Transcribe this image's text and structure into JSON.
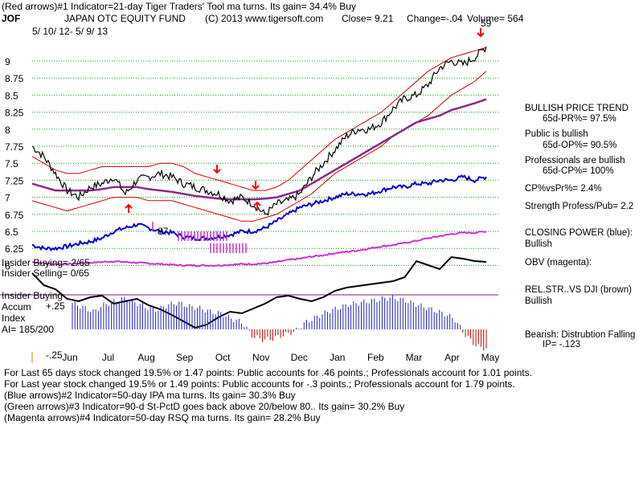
{
  "header": {
    "line1": "(Red arrows)#1 Indicator=21-day Tiger Traders' Tool ma turns. Its gain= 34.4% Buy",
    "symbol": "JOF",
    "fund_name": "JAPAN OTC EQUITY FUND",
    "copyright": "(C) 2013 www.tigersoft.com",
    "close": "Close=  9.21",
    "change": "Change=-.04",
    "volume": "Volume= 564",
    "date_range": "5/ 10/ 12- 5/ 9/ 13",
    "current_label": "59"
  },
  "left_labels": {
    "insider_buying_ratio": "Insider Buying= 2/65",
    "insider_selling_ratio": "Insider Selling= 0/65",
    "insider_buying": "Insider Buying",
    "accum": "Accum",
    "index": "Index",
    "ai": "AI= 185/200",
    "plus25": "+.25",
    "minus25": "-.25",
    "annot_87": "87"
  },
  "right_panel": {
    "bullish_price_trend": "BULLISH PRICE TREND",
    "pr_pct": "65d-PR%= 97.5%",
    "public_bullish": "Public is bullish",
    "op_pct": "65d-OP%= 90.5%",
    "professionals_bullish": "Professionals are bullish",
    "cp_pct": "65d-CP%= 100%",
    "cp_vs_pr": "CP%vsPr%=  2.4%",
    "strength": "Strength Profess/Pub= 2.2",
    "closing_power": "CLOSING POWER (blue):",
    "closing_power_val": "Bullish",
    "obv": "OBV (magenta):",
    "relstr": "REL.STR..VS DJI (brown)",
    "relstr_val": "Bullish",
    "bearish": "Bearish: Distrubtion Falling",
    "ip": "IP= -.123"
  },
  "footer": {
    "line1": "For Last 65 days stock changed  19.5% or  1.47 points:  Public accounts for  .46 points.;  Professionals account for  1.01 points.",
    "line2": "For Last year stock changed  19.5% or  1.49 points:  Public accounts for -.3 points.;  Professionals account for  1.79 points.",
    "line3": "(Blue arrows)#2 Indicator=50-day IPA ma turns. Its gain= 30.3% Buy",
    "line4": "(Green arrows)#3 Indicator=90-d St-PctD goes back above 20/below 80.. Its gain= 30.2% Buy",
    "line5": "(Magenta arrows)#4 Indicator=50-day RSQ ma turns. Its gain= 28.2% Buy"
  },
  "chart_data": {
    "type": "line",
    "title": "JAPAN OTC EQUITY FUND (JOF) 5/10/12 - 5/9/13",
    "y_ticks": [
      "9",
      "8.75",
      "8.5",
      "8.25",
      "8",
      "7.75",
      "7.5",
      "7.25",
      "7",
      "6.75",
      "6.5",
      "6.25",
      "6"
    ],
    "ylim": [
      6,
      9.25
    ],
    "x_ticks": [
      "Jun",
      "Jul",
      "Aug",
      "Sep",
      "Oct",
      "Nov",
      "Dec",
      "Jan",
      "Feb",
      "Mar",
      "Apr",
      "May"
    ],
    "series": [
      {
        "name": "Price close",
        "values": [
          7.75,
          7.6,
          7.35,
          7.1,
          7.0,
          7.15,
          7.2,
          7.3,
          7.05,
          7.25,
          7.3,
          7.35,
          7.3,
          7.2,
          7.15,
          7.1,
          7.05,
          6.95,
          7.0,
          6.9,
          6.75,
          6.9,
          6.95,
          7.05,
          7.3,
          7.5,
          7.7,
          7.9,
          8.0,
          8.0,
          8.1,
          8.3,
          8.45,
          8.5,
          8.65,
          8.9,
          9.0,
          8.95,
          9.05,
          9.21
        ]
      },
      {
        "name": "Upper band",
        "values": [
          7.6,
          7.5,
          7.4,
          7.35,
          7.35,
          7.4,
          7.45,
          7.45,
          7.45,
          7.45,
          7.45,
          7.5,
          7.5,
          7.45,
          7.35,
          7.3,
          7.25,
          7.2,
          7.15,
          7.1,
          7.1,
          7.15,
          7.25,
          7.4,
          7.55,
          7.7,
          7.85,
          7.95,
          8.05,
          8.15,
          8.25,
          8.4,
          8.55,
          8.7,
          8.85,
          8.95,
          9.05,
          9.1,
          9.15,
          9.2
        ]
      },
      {
        "name": "Lower band",
        "values": [
          6.95,
          6.9,
          6.85,
          6.8,
          6.85,
          6.9,
          6.95,
          7.0,
          7.0,
          7.0,
          6.95,
          6.95,
          6.95,
          6.9,
          6.85,
          6.8,
          6.75,
          6.7,
          6.65,
          6.65,
          6.7,
          6.75,
          6.85,
          6.95,
          7.05,
          7.2,
          7.35,
          7.45,
          7.55,
          7.65,
          7.75,
          7.9,
          8.0,
          8.1,
          8.2,
          8.35,
          8.5,
          8.6,
          8.7,
          8.85
        ]
      },
      {
        "name": "Moving average (purple)",
        "values": [
          7.2,
          7.15,
          7.1,
          7.1,
          7.1,
          7.1,
          7.12,
          7.15,
          7.15,
          7.15,
          7.12,
          7.1,
          7.08,
          7.05,
          7.02,
          7.0,
          6.98,
          6.97,
          6.97,
          6.97,
          6.98,
          7.0,
          7.05,
          7.1,
          7.2,
          7.3,
          7.4,
          7.5,
          7.6,
          7.7,
          7.8,
          7.9,
          8.0,
          8.1,
          8.15,
          8.2,
          8.28,
          8.33,
          8.38,
          8.44
        ]
      },
      {
        "name": "Closing Power (blue)",
        "values": [
          6.3,
          6.25,
          6.25,
          6.28,
          6.32,
          6.35,
          6.4,
          6.5,
          6.55,
          6.6,
          6.55,
          6.5,
          6.48,
          6.42,
          6.4,
          6.4,
          6.42,
          6.45,
          6.5,
          6.5,
          6.55,
          6.65,
          6.75,
          6.85,
          6.9,
          6.95,
          7.0,
          7.05,
          7.05,
          7.05,
          7.1,
          7.15,
          7.15,
          7.2,
          7.2,
          7.25,
          7.25,
          7.3,
          7.25,
          7.3
        ]
      }
    ]
  },
  "colors": {
    "price": "#000000",
    "bands": "#cc0000",
    "ma": "#8a2a8a",
    "closing_power": "#0000cc",
    "obv": "#cc33cc",
    "relstr": "#000000",
    "grid": "#00aa00",
    "accum_bars": "#2222cc",
    "accum_neg": "#cc0000",
    "arrows_red": "#ff0000",
    "arrows_magenta": "#cc33cc"
  }
}
